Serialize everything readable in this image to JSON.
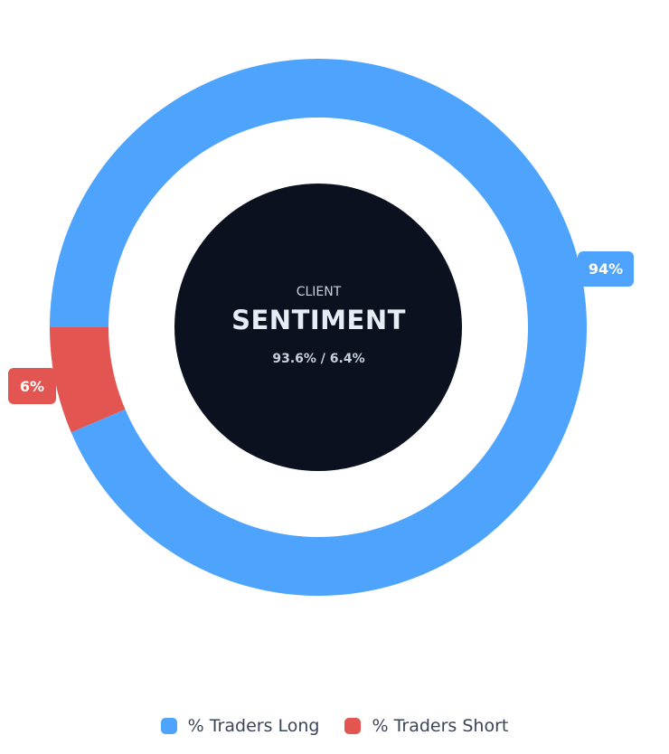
{
  "chart_data": {
    "type": "pie",
    "variant": "doughnut",
    "title": "CLIENT SENTIMENT",
    "categories": [
      "% Traders Long",
      "% Traders Short"
    ],
    "values": [
      93.6,
      6.4
    ],
    "data_labels": [
      "94%",
      "6%"
    ],
    "colors": [
      "#4ea3fd",
      "#e35551"
    ],
    "legend_position": "bottom"
  },
  "center": {
    "subtitle": "CLIENT",
    "title": "SENTIMENT",
    "values_text": "93.6% / 6.4%"
  },
  "labels": {
    "long": "94%",
    "short": "6%"
  },
  "legend": [
    {
      "label": "% Traders Long",
      "color": "#4ea3fd"
    },
    {
      "label": "% Traders Short",
      "color": "#e35551"
    }
  ],
  "colors": {
    "long": "#4ea3fd",
    "short": "#e35551",
    "center_bg": "#0c1120"
  }
}
